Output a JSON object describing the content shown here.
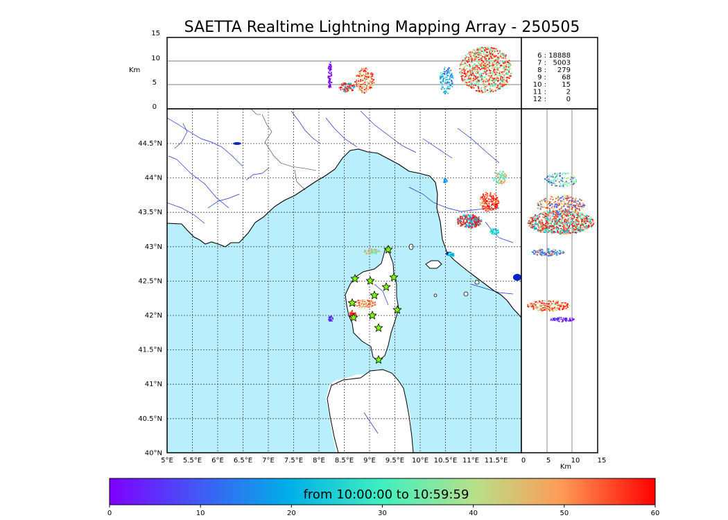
{
  "title": "SAETTA Realtime Lightning Mapping Array - 250505",
  "top_panel": {
    "ylabel": "Km",
    "yticks": [
      "15",
      "10",
      "5",
      "0"
    ]
  },
  "side_panel": {
    "xlabel": "Km",
    "xticks": [
      "0",
      "5",
      "10",
      "15"
    ]
  },
  "stats": [
    {
      "level": "6 :",
      "count": "18888",
      "color": "#ff0000"
    },
    {
      "level": "7 :",
      "count": "5003",
      "color": "#000000"
    },
    {
      "level": "8 :",
      "count": "279",
      "color": "#000000"
    },
    {
      "level": "9 :",
      "count": "68",
      "color": "#000000"
    },
    {
      "level": "10 :",
      "count": "15",
      "color": "#000000"
    },
    {
      "level": "11 :",
      "count": "2",
      "color": "#000000"
    },
    {
      "level": "12 :",
      "count": "0",
      "color": "#000000"
    }
  ],
  "map": {
    "lon_ticks": [
      "5°E",
      "5.5°E",
      "6°E",
      "6.5°E",
      "7°E",
      "7.5°E",
      "8°E",
      "8.5°E",
      "9°E",
      "9.5°E",
      "10°E",
      "10.5°E",
      "11°E",
      "11.5°E"
    ],
    "lat_ticks": [
      "44.5°N",
      "44°N",
      "43.5°N",
      "43°N",
      "42.5°N",
      "42°N",
      "41.5°N",
      "41°N",
      "40.5°N",
      "40°N"
    ],
    "sea_color": "#b9effc",
    "station_color": "#7cfc00"
  },
  "colorbar": {
    "label": "from 10:00:00 to 10:59:59",
    "ticks": [
      "0",
      "10",
      "20",
      "30",
      "40",
      "50",
      "60"
    ]
  }
}
